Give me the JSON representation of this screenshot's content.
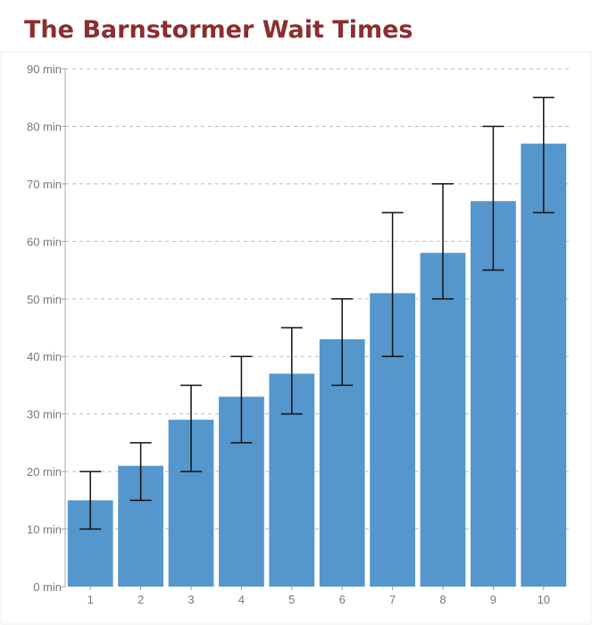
{
  "title": "The Barnstormer Wait Times",
  "colors": {
    "title": "#8b2e2e",
    "bar": "#5597cc",
    "grid": "#bbbbbb",
    "error_bar": "#111111",
    "tick_text": "#777777",
    "panel_border": "#eeeeee"
  },
  "chart_data": {
    "type": "bar",
    "title": "The Barnstormer Wait Times",
    "xlabel": "",
    "ylabel": "",
    "categories": [
      "1",
      "2",
      "3",
      "4",
      "5",
      "6",
      "7",
      "8",
      "9",
      "10"
    ],
    "values": [
      15,
      21,
      29,
      33,
      37,
      43,
      51,
      58,
      67,
      77
    ],
    "error_low": [
      10,
      15,
      20,
      25,
      30,
      35,
      40,
      50,
      55,
      65
    ],
    "error_high": [
      20,
      25,
      35,
      40,
      45,
      50,
      65,
      70,
      80,
      85
    ],
    "ylim": [
      0,
      90
    ],
    "yticks": [
      0,
      10,
      20,
      30,
      40,
      50,
      60,
      70,
      80,
      90
    ],
    "ytick_labels": [
      "0 min",
      "10 min",
      "20 min",
      "30 min",
      "40 min",
      "50 min",
      "60 min",
      "70 min",
      "80 min",
      "90 min"
    ],
    "grid": "horizontal dashed",
    "legend": "none"
  }
}
